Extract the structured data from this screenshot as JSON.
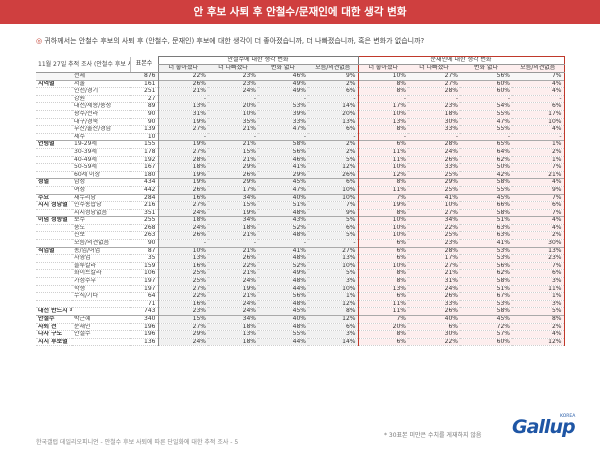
{
  "title": "안 후보 사퇴 후 안철수/문재인에 대한 생각 변화",
  "question": "귀하께서는 안철수 후보의 사퇴 후 (안철수, 문재인) 후보에 대한 생각이 더 좋아졌습니까, 더 나빠졌습니까, 혹은 변화가 없습니까?",
  "corner_label": "11월 27일 추적 조사 (안철수 후보 사퇴 후)",
  "headers": {
    "base": "표본수",
    "group1": "안철수에 대한 생각 변화",
    "group2": "문재인에 대한 생각 변화",
    "cols": [
      "더 좋아졌다",
      "더 나빠졌다",
      "변화 없다",
      "모름/의견없음",
      "더 좋아졌다",
      "더 나빠졌다",
      "변화 없다",
      "모름/의견없음"
    ]
  },
  "rows": [
    {
      "cat": "",
      "sub": "전체",
      "n": "876",
      "v": [
        "22%",
        "23%",
        "46%",
        "9%",
        "10%",
        "27%",
        "56%",
        "7%"
      ],
      "total": true
    },
    {
      "cat": "지역별",
      "sub": "서울",
      "n": "161",
      "v": [
        "26%",
        "23%",
        "49%",
        "2%",
        "8%",
        "27%",
        "60%",
        "4%"
      ],
      "start": true
    },
    {
      "cat": "",
      "sub": "인천/경기",
      "n": "251",
      "v": [
        "21%",
        "24%",
        "49%",
        "6%",
        "8%",
        "28%",
        "60%",
        "4%"
      ]
    },
    {
      "cat": "",
      "sub": "강원",
      "n": "27",
      "v": [
        "-",
        "-",
        "-",
        "-",
        "-",
        "-",
        "-",
        "-"
      ]
    },
    {
      "cat": "",
      "sub": "대전/세종/충청",
      "n": "89",
      "v": [
        "13%",
        "20%",
        "53%",
        "14%",
        "17%",
        "23%",
        "54%",
        "6%"
      ]
    },
    {
      "cat": "",
      "sub": "광주/전라",
      "n": "90",
      "v": [
        "31%",
        "10%",
        "39%",
        "20%",
        "10%",
        "18%",
        "55%",
        "17%"
      ]
    },
    {
      "cat": "",
      "sub": "대구/경북",
      "n": "90",
      "v": [
        "19%",
        "35%",
        "33%",
        "13%",
        "13%",
        "30%",
        "47%",
        "10%"
      ]
    },
    {
      "cat": "",
      "sub": "부산/울산/경남",
      "n": "139",
      "v": [
        "27%",
        "21%",
        "47%",
        "6%",
        "8%",
        "33%",
        "55%",
        "4%"
      ]
    },
    {
      "cat": "",
      "sub": "제주",
      "n": "10",
      "v": [
        "-",
        "-",
        "-",
        "-",
        "-",
        "-",
        "-",
        "-"
      ]
    },
    {
      "cat": "연령별",
      "sub": "19-29세",
      "n": "155",
      "v": [
        "19%",
        "21%",
        "58%",
        "2%",
        "6%",
        "28%",
        "65%",
        "1%"
      ],
      "start": true
    },
    {
      "cat": "",
      "sub": "30-39세",
      "n": "178",
      "v": [
        "27%",
        "15%",
        "56%",
        "2%",
        "11%",
        "24%",
        "64%",
        "2%"
      ]
    },
    {
      "cat": "",
      "sub": "40-49세",
      "n": "192",
      "v": [
        "28%",
        "21%",
        "46%",
        "5%",
        "11%",
        "26%",
        "62%",
        "1%"
      ]
    },
    {
      "cat": "",
      "sub": "50-59세",
      "n": "167",
      "v": [
        "18%",
        "29%",
        "41%",
        "12%",
        "10%",
        "33%",
        "50%",
        "7%"
      ]
    },
    {
      "cat": "",
      "sub": "60세 이상",
      "n": "180",
      "v": [
        "19%",
        "26%",
        "29%",
        "26%",
        "12%",
        "25%",
        "42%",
        "21%"
      ]
    },
    {
      "cat": "성별",
      "sub": "남성",
      "n": "434",
      "v": [
        "19%",
        "29%",
        "45%",
        "6%",
        "8%",
        "29%",
        "58%",
        "4%"
      ],
      "start": true
    },
    {
      "cat": "",
      "sub": "여성",
      "n": "442",
      "v": [
        "26%",
        "17%",
        "47%",
        "10%",
        "11%",
        "25%",
        "55%",
        "9%"
      ]
    },
    {
      "cat": "주요",
      "sub": "새누리당",
      "n": "284",
      "v": [
        "16%",
        "34%",
        "40%",
        "10%",
        "7%",
        "41%",
        "45%",
        "7%"
      ],
      "start": true
    },
    {
      "cat": "지지 정당별",
      "sub": "민주통합당",
      "n": "216",
      "v": [
        "27%",
        "15%",
        "51%",
        "7%",
        "19%",
        "10%",
        "66%",
        "6%"
      ]
    },
    {
      "cat": "",
      "sub": "지지정당없음",
      "n": "351",
      "v": [
        "24%",
        "19%",
        "48%",
        "9%",
        "8%",
        "27%",
        "58%",
        "7%"
      ]
    },
    {
      "cat": "이념 성향별",
      "sub": "보수",
      "n": "255",
      "v": [
        "18%",
        "34%",
        "43%",
        "5%",
        "10%",
        "34%",
        "51%",
        "4%"
      ],
      "start": true
    },
    {
      "cat": "",
      "sub": "중도",
      "n": "268",
      "n2": "",
      "v": [
        "24%",
        "18%",
        "52%",
        "6%",
        "10%",
        "22%",
        "63%",
        "4%"
      ]
    },
    {
      "cat": "",
      "sub": "진보",
      "n": "263",
      "v": [
        "26%",
        "21%",
        "48%",
        "5%",
        "10%",
        "25%",
        "63%",
        "2%"
      ]
    },
    {
      "cat": "",
      "sub": "모름/의견없음",
      "n": "90",
      "v": [
        "-",
        "-",
        "-",
        "-",
        "6%",
        "23%",
        "41%",
        "30%"
      ]
    },
    {
      "cat": "직업별",
      "sub": "농/임/어업",
      "n": "87",
      "v": [
        "10%",
        "21%",
        "41%",
        "27%",
        "6%",
        "28%",
        "53%",
        "13%"
      ],
      "start": true
    },
    {
      "cat": "",
      "sub": "자영업",
      "n": "35",
      "v": [
        "13%",
        "26%",
        "48%",
        "13%",
        "6%",
        "17%",
        "53%",
        "23%"
      ]
    },
    {
      "cat": "",
      "sub": "블루칼라",
      "n": "159",
      "v": [
        "16%",
        "22%",
        "52%",
        "10%",
        "10%",
        "27%",
        "56%",
        "7%"
      ]
    },
    {
      "cat": "",
      "sub": "화이트칼라",
      "n": "106",
      "v": [
        "25%",
        "21%",
        "49%",
        "5%",
        "8%",
        "21%",
        "62%",
        "6%"
      ]
    },
    {
      "cat": "",
      "sub": "가정주부",
      "n": "197",
      "v": [
        "25%",
        "24%",
        "48%",
        "3%",
        "8%",
        "31%",
        "58%",
        "3%"
      ]
    },
    {
      "cat": "",
      "sub": "학생",
      "n": "197",
      "v": [
        "27%",
        "19%",
        "44%",
        "10%",
        "13%",
        "24%",
        "51%",
        "11%"
      ]
    },
    {
      "cat": "",
      "sub": "무직/기타",
      "n": "64",
      "v": [
        "22%",
        "21%",
        "56%",
        "1%",
        "6%",
        "26%",
        "67%",
        "1%"
      ]
    },
    {
      "cat": "",
      "sub": "",
      "n": "71",
      "v": [
        "16%",
        "24%",
        "48%",
        "12%",
        "11%",
        "33%",
        "53%",
        "3%"
      ]
    },
    {
      "cat": "대선 반드시 투표 의향자",
      "sub": "",
      "n": "743",
      "v": [
        "23%",
        "24%",
        "45%",
        "8%",
        "11%",
        "26%",
        "58%",
        "5%"
      ]
    },
    {
      "cat": "안철수",
      "sub": "박근혜",
      "n": "340",
      "v": [
        "15%",
        "34%",
        "40%",
        "12%",
        "7%",
        "40%",
        "45%",
        "8%"
      ],
      "start": true
    },
    {
      "cat": "사퇴 전",
      "sub": "문재인",
      "n": "196",
      "v": [
        "27%",
        "18%",
        "48%",
        "6%",
        "20%",
        "6%",
        "72%",
        "2%"
      ]
    },
    {
      "cat": "다자 구도",
      "sub": "안철수",
      "n": "196",
      "v": [
        "29%",
        "13%",
        "55%",
        "3%",
        "8%",
        "30%",
        "57%",
        "4%"
      ]
    },
    {
      "cat": "지지 후보별",
      "sub": "",
      "n": "136",
      "v": [
        "24%",
        "18%",
        "44%",
        "14%",
        "6%",
        "22%",
        "60%",
        "12%"
      ]
    }
  ],
  "note": "* 30표본 미만은 수치를 게재하지 않음",
  "footer": "한국갤럽 데일리오피니언 - 안철수 후보 사퇴에 따른 단일화에 대한 추적 조사 - 5",
  "logo": "Gallup",
  "logo_sub": "KOREA",
  "colors": {
    "accent": "#cf3f3f",
    "logo": "#1f56a5"
  }
}
